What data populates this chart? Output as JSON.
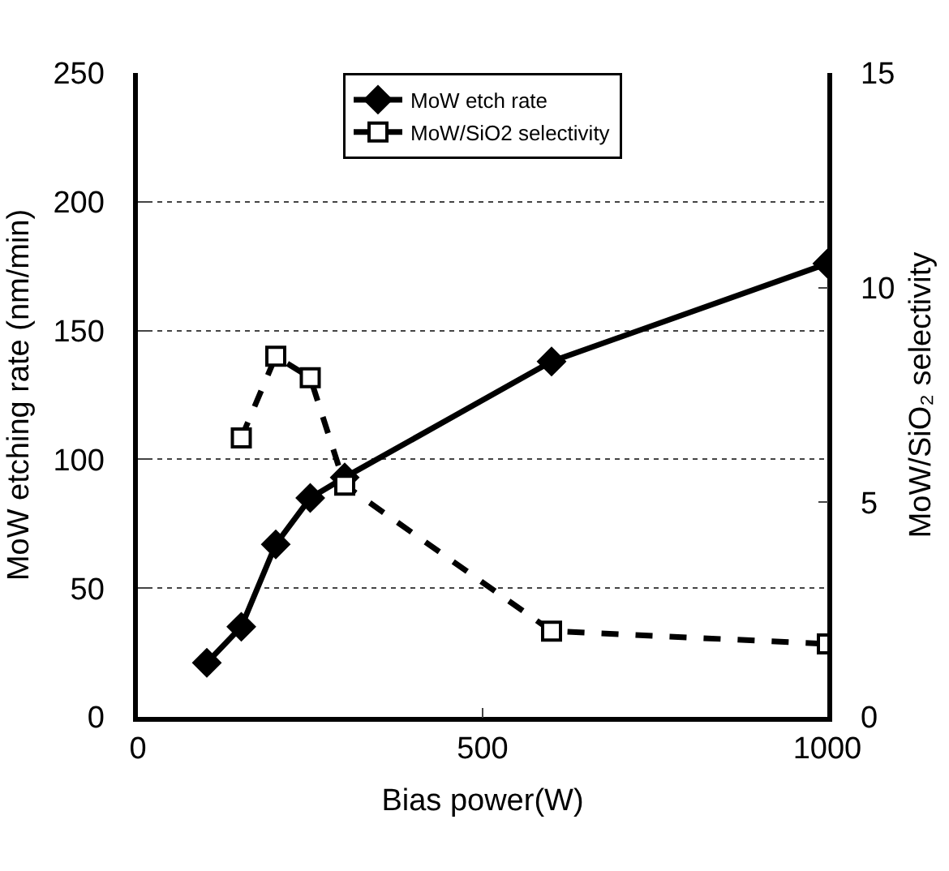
{
  "chart_data": {
    "type": "line",
    "xlabel": "Bias power(W)",
    "ylabel": "MoW etching rate (nm/min)",
    "y2label": "MoW/SiO₂ selectivity",
    "x": [
      100,
      150,
      200,
      250,
      300,
      600,
      1000
    ],
    "series": [
      {
        "name": "MoW etch rate",
        "color": "#000000",
        "marker": "diamond",
        "line_style": "solid",
        "values": [
          21,
          35,
          67,
          85,
          93,
          138,
          176
        ]
      },
      {
        "name": "MoW/SiO2 selectivity",
        "color": "#000000",
        "marker": "square",
        "line_style": "dashed",
        "axis": "y2",
        "x": [
          150,
          200,
          250,
          300,
          600,
          1000
        ],
        "values": [
          6.5,
          8.4,
          7.9,
          5.4,
          2.0,
          1.7
        ]
      }
    ],
    "xlim": [
      0,
      1000
    ],
    "xticks": [
      0,
      500,
      1000
    ],
    "ylim": [
      0,
      250
    ],
    "yticks": [
      0,
      50,
      100,
      150,
      200,
      250
    ],
    "y2lim": [
      0,
      15
    ],
    "y2ticks": [
      0,
      5,
      10,
      15
    ],
    "grid": "y",
    "legend": "top"
  }
}
